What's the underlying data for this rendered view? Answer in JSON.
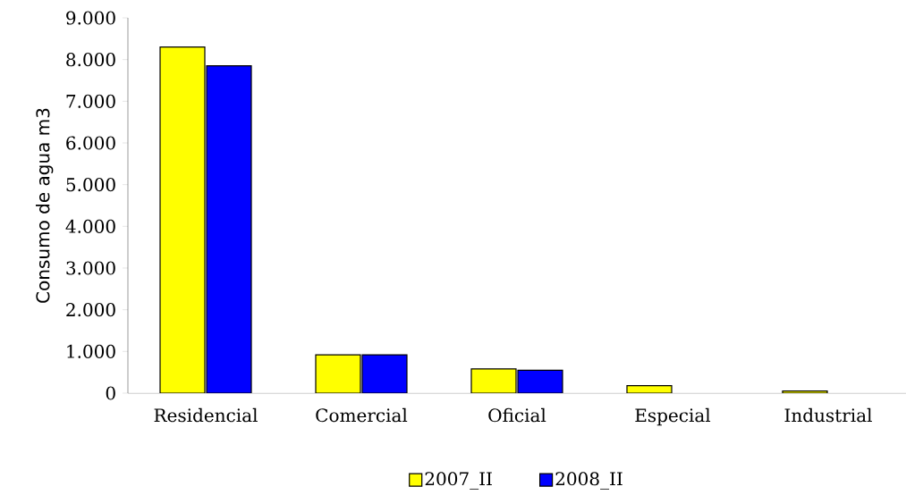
{
  "chart_data": {
    "type": "bar",
    "ylabel": "Consumo de agua m3",
    "categories": [
      "Residencial",
      "Comercial",
      "Oficial",
      "Especial",
      "Industrial"
    ],
    "series": [
      {
        "name": "2007_II",
        "color": "#ffff00",
        "values": [
          8300,
          920,
          580,
          180,
          50
        ]
      },
      {
        "name": "2008_II",
        "color": "#0000ff",
        "values": [
          7850,
          920,
          550,
          null,
          null
        ]
      }
    ],
    "ylim": [
      0,
      9000
    ],
    "yticks": [
      0,
      {
        "value": 1000,
        "label": "1.000"
      },
      {
        "value": 2000,
        "label": "2.000"
      },
      {
        "value": 3000,
        "label": "3.000"
      },
      {
        "value": 4000,
        "label": "4.000"
      },
      {
        "value": 5000,
        "label": "5.000"
      },
      {
        "value": 6000,
        "label": "6.000"
      },
      {
        "value": 7000,
        "label": "7.000"
      },
      {
        "value": 8000,
        "label": "8.000"
      },
      {
        "value": 9000,
        "label": "9.000"
      }
    ],
    "grid": false,
    "legend": "bottom"
  }
}
